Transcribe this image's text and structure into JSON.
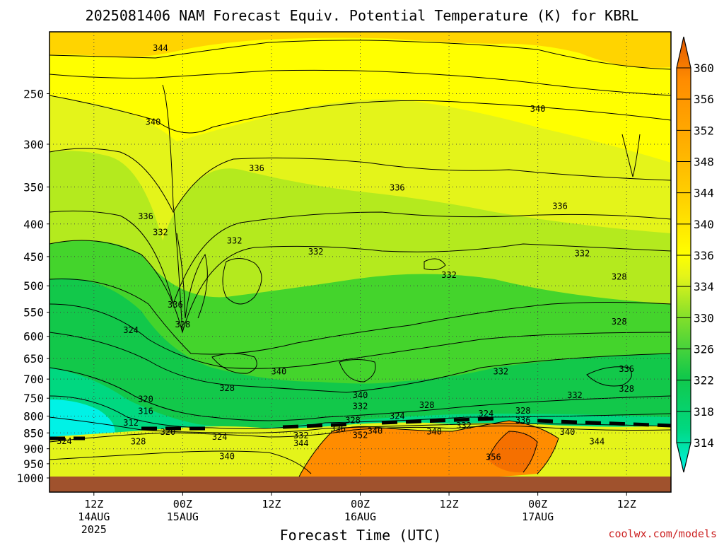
{
  "chart_data": {
    "type": "heatmap",
    "title": "2025081406 NAM Forecast Equiv. Potential Temperature (K) for KBRL",
    "xlabel": "Forecast Time (UTC)",
    "ylabel": "",
    "y_scale": "log",
    "y_reversed": true,
    "ylim": [
      1000,
      200
    ],
    "y_ticks": [
      250,
      300,
      350,
      400,
      450,
      500,
      550,
      600,
      650,
      700,
      750,
      800,
      850,
      900,
      950,
      1000
    ],
    "x_ticks": [
      {
        "hour": 6,
        "label": "12Z",
        "date": "14AUG",
        "year": "2025"
      },
      {
        "hour": 18,
        "label": "00Z",
        "date": "15AUG",
        "year": ""
      },
      {
        "hour": 30,
        "label": "12Z",
        "date": "",
        "year": ""
      },
      {
        "hour": 42,
        "label": "00Z",
        "date": "16AUG",
        "year": ""
      },
      {
        "hour": 54,
        "label": "12Z",
        "date": "",
        "year": ""
      },
      {
        "hour": 66,
        "label": "00Z",
        "date": "17AUG",
        "year": ""
      },
      {
        "hour": 78,
        "label": "12Z",
        "date": "",
        "year": ""
      }
    ],
    "xlim": [
      0,
      84
    ],
    "grid": true,
    "colorbar": {
      "unit": "K",
      "levels": [
        314,
        318,
        322,
        326,
        330,
        334,
        336,
        340,
        344,
        348,
        352,
        356,
        360
      ],
      "colors": [
        "#00f2e6",
        "#00e6b0",
        "#00d880",
        "#12c84a",
        "#3cd42e",
        "#7ede2c",
        "#b4ea1e",
        "#e4f41a",
        "#ffff00",
        "#ffd400",
        "#ffb000",
        "#ff8c00",
        "#f57000",
        "#e25800"
      ]
    },
    "ground_color": "#a0522d",
    "contour_labels": [
      {
        "value": 344,
        "hour": 15,
        "p": 212
      },
      {
        "value": 340,
        "hour": 14,
        "p": 277
      },
      {
        "value": 336,
        "hour": 28,
        "p": 327
      },
      {
        "value": 336,
        "hour": 47,
        "p": 351
      },
      {
        "value": 340,
        "hour": 66,
        "p": 264
      },
      {
        "value": 336,
        "hour": 69,
        "p": 375
      },
      {
        "value": 336,
        "hour": 13,
        "p": 389
      },
      {
        "value": 332,
        "hour": 15,
        "p": 412
      },
      {
        "value": 332,
        "hour": 25,
        "p": 425
      },
      {
        "value": 332,
        "hour": 36,
        "p": 442
      },
      {
        "value": 332,
        "hour": 54,
        "p": 481
      },
      {
        "value": 332,
        "hour": 72,
        "p": 445
      },
      {
        "value": 328,
        "hour": 77,
        "p": 484
      },
      {
        "value": 336,
        "hour": 17,
        "p": 535
      },
      {
        "value": 328,
        "hour": 18,
        "p": 575
      },
      {
        "value": 328,
        "hour": 77,
        "p": 569
      },
      {
        "value": 324,
        "hour": 11,
        "p": 587
      },
      {
        "value": 340,
        "hour": 31,
        "p": 681
      },
      {
        "value": 332,
        "hour": 61,
        "p": 681
      },
      {
        "value": 336,
        "hour": 78,
        "p": 675
      },
      {
        "value": 328,
        "hour": 78,
        "p": 725
      },
      {
        "value": 328,
        "hour": 24,
        "p": 723
      },
      {
        "value": 340,
        "hour": 42,
        "p": 742
      },
      {
        "value": 332,
        "hour": 42,
        "p": 772
      },
      {
        "value": 328,
        "hour": 51,
        "p": 769
      },
      {
        "value": 332,
        "hour": 71,
        "p": 742
      },
      {
        "value": 320,
        "hour": 13,
        "p": 752
      },
      {
        "value": 316,
        "hour": 13,
        "p": 786
      },
      {
        "value": 312,
        "hour": 11,
        "p": 820
      },
      {
        "value": 320,
        "hour": 16,
        "p": 847
      },
      {
        "value": 324,
        "hour": 2,
        "p": 876
      },
      {
        "value": 328,
        "hour": 12,
        "p": 877
      },
      {
        "value": 324,
        "hour": 23,
        "p": 862
      },
      {
        "value": 340,
        "hour": 24,
        "p": 925
      },
      {
        "value": 332,
        "hour": 34,
        "p": 858
      },
      {
        "value": 344,
        "hour": 34,
        "p": 883
      },
      {
        "value": 336,
        "hour": 39,
        "p": 838
      },
      {
        "value": 328,
        "hour": 41,
        "p": 812
      },
      {
        "value": 324,
        "hour": 47,
        "p": 800
      },
      {
        "value": 340,
        "hour": 44,
        "p": 844
      },
      {
        "value": 352,
        "hour": 42,
        "p": 857
      },
      {
        "value": 348,
        "hour": 52,
        "p": 846
      },
      {
        "value": 332,
        "hour": 56,
        "p": 828
      },
      {
        "value": 324,
        "hour": 59,
        "p": 793
      },
      {
        "value": 328,
        "hour": 64,
        "p": 785
      },
      {
        "value": 336,
        "hour": 64,
        "p": 812
      },
      {
        "value": 340,
        "hour": 70,
        "p": 847
      },
      {
        "value": 344,
        "hour": 74,
        "p": 877
      },
      {
        "value": 356,
        "hour": 60,
        "p": 927
      }
    ]
  },
  "credit": "coolwx.com/models"
}
